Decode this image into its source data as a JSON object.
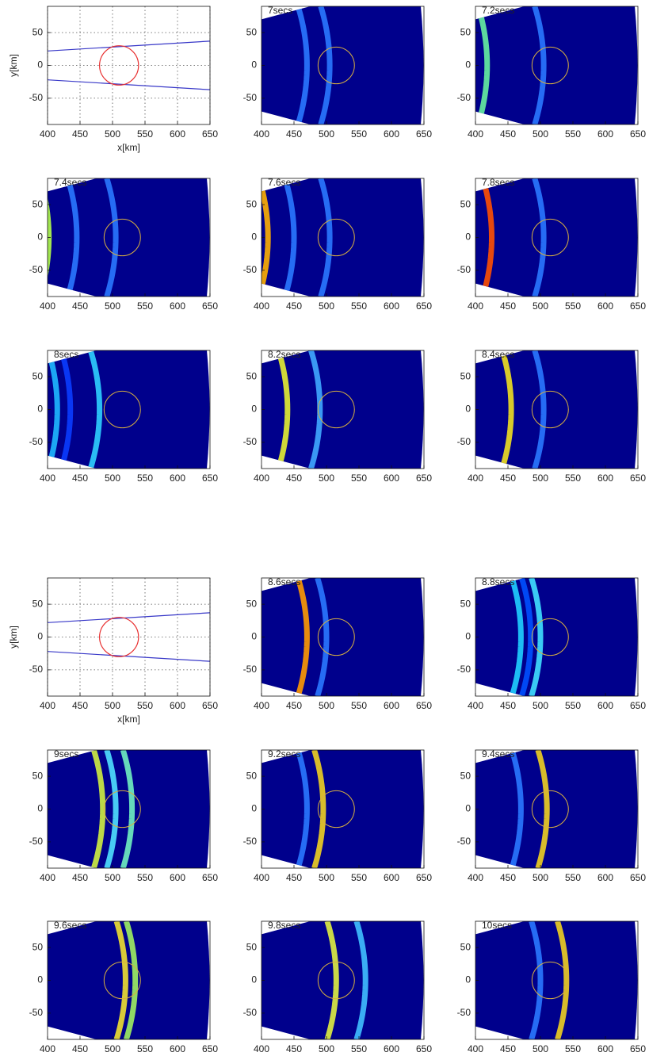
{
  "chart_data": [
    {
      "type": "geometry",
      "xlabel": "x[km]",
      "ylabel": "y[km]",
      "grid": true,
      "xlim": [
        400,
        650
      ],
      "ylim": [
        -90,
        90
      ],
      "xticks": [
        400,
        450,
        500,
        550,
        600,
        650
      ],
      "yticks": [
        -50,
        0,
        50
      ],
      "lines": [
        {
          "color": "#3838c8",
          "x": [
            400,
            650
          ],
          "y": [
            22,
            37
          ]
        },
        {
          "color": "#3838c8",
          "x": [
            400,
            650
          ],
          "y": [
            -22,
            -37
          ]
        }
      ],
      "circle": {
        "x": 510,
        "y": 0,
        "r": 30,
        "color": "#e83030"
      }
    },
    {
      "type": "heatmap",
      "title": "7secs",
      "xlim": [
        400,
        650
      ],
      "ylim": [
        -90,
        90
      ],
      "xticks": [
        400,
        450,
        500,
        550,
        600,
        650
      ],
      "yticks": [
        -50,
        0,
        50
      ],
      "circle": {
        "x": 515,
        "y": 0,
        "r": 28,
        "color": "#d8b040"
      },
      "fronts": {
        "x": [
          470,
          505
        ],
        "colors": [
          "#2a78ff",
          "#2a78ff"
        ]
      }
    },
    {
      "type": "heatmap",
      "title": "7.2secs",
      "xlim": [
        400,
        650
      ],
      "ylim": [
        -90,
        90
      ],
      "xticks": [
        400,
        450,
        500,
        550,
        600,
        650
      ],
      "yticks": [
        -50,
        0,
        50
      ],
      "circle": {
        "x": 515,
        "y": 0,
        "r": 28,
        "color": "#d8b040"
      },
      "fronts": {
        "x": [
          418,
          505
        ],
        "colors": [
          "#66f0a0",
          "#2a78ff"
        ]
      }
    },
    {
      "type": "heatmap",
      "title": "7.4secs",
      "xlim": [
        400,
        650
      ],
      "ylim": [
        -90,
        90
      ],
      "xticks": [
        400,
        450,
        500,
        550,
        600,
        650
      ],
      "yticks": [
        -50,
        0,
        50
      ],
      "circle": {
        "x": 515,
        "y": 0,
        "r": 28,
        "color": "#d8b040"
      },
      "fronts": {
        "x": [
          402,
          445,
          505
        ],
        "colors": [
          "#b4ff4a",
          "#2a78ff",
          "#2a78ff"
        ]
      }
    },
    {
      "type": "heatmap",
      "title": "7.6secs",
      "xlim": [
        400,
        650
      ],
      "ylim": [
        -90,
        90
      ],
      "xticks": [
        400,
        450,
        500,
        550,
        600,
        650
      ],
      "yticks": [
        -50,
        0,
        50
      ],
      "circle": {
        "x": 515,
        "y": 0,
        "r": 28,
        "color": "#d8b040"
      },
      "fronts": {
        "x": [
          410,
          450,
          505
        ],
        "colors": [
          "#ffb000",
          "#2a78ff",
          "#2a78ff"
        ]
      }
    },
    {
      "type": "heatmap",
      "title": "7.8secs",
      "xlim": [
        400,
        650
      ],
      "ylim": [
        -90,
        90
      ],
      "xticks": [
        400,
        450,
        500,
        550,
        600,
        650
      ],
      "yticks": [
        -50,
        0,
        50
      ],
      "circle": {
        "x": 515,
        "y": 0,
        "r": 28,
        "color": "#d8b040"
      },
      "fronts": {
        "x": [
          425,
          505
        ],
        "colors": [
          "#ff5000",
          "#2a78ff"
        ]
      }
    },
    {
      "type": "heatmap",
      "title": "8secs",
      "xlim": [
        400,
        650
      ],
      "ylim": [
        -90,
        90
      ],
      "xticks": [
        400,
        450,
        500,
        550,
        600,
        650
      ],
      "yticks": [
        -50,
        0,
        50
      ],
      "circle": {
        "x": 515,
        "y": 0,
        "r": 28,
        "color": "#d8b040"
      },
      "fronts": {
        "x": [
          415,
          435,
          480
        ],
        "colors": [
          "#1fb8ff",
          "#0a3cff",
          "#2fd0ff"
        ]
      }
    },
    {
      "type": "heatmap",
      "title": "8.2secs",
      "xlim": [
        400,
        650
      ],
      "ylim": [
        -90,
        90
      ],
      "xticks": [
        400,
        450,
        500,
        550,
        600,
        650
      ],
      "yticks": [
        -50,
        0,
        50
      ],
      "circle": {
        "x": 515,
        "y": 0,
        "r": 28,
        "color": "#d8b040"
      },
      "fronts": {
        "x": [
          440,
          490
        ],
        "colors": [
          "#e6f030",
          "#40a8ff"
        ]
      }
    },
    {
      "type": "heatmap",
      "title": "8.4secs",
      "xlim": [
        400,
        650
      ],
      "ylim": [
        -90,
        90
      ],
      "xticks": [
        400,
        450,
        500,
        550,
        600,
        650
      ],
      "yticks": [
        -50,
        0,
        50
      ],
      "circle": {
        "x": 515,
        "y": 0,
        "r": 28,
        "color": "#d8b040"
      },
      "fronts": {
        "x": [
          455,
          505
        ],
        "colors": [
          "#f0e020",
          "#2a78ff"
        ]
      }
    },
    {
      "type": "geometry",
      "xlabel": "x[km]",
      "ylabel": "y[km]",
      "grid": true,
      "xlim": [
        400,
        650
      ],
      "ylim": [
        -90,
        90
      ],
      "xticks": [
        400,
        450,
        500,
        550,
        600,
        650
      ],
      "yticks": [
        -50,
        0,
        50
      ],
      "lines": [
        {
          "color": "#3838c8",
          "x": [
            400,
            650
          ],
          "y": [
            22,
            37
          ]
        },
        {
          "color": "#3838c8",
          "x": [
            400,
            650
          ],
          "y": [
            -22,
            -37
          ]
        }
      ],
      "circle": {
        "x": 510,
        "y": 0,
        "r": 30,
        "color": "#e83030"
      }
    },
    {
      "type": "heatmap",
      "title": "8.6secs",
      "xlim": [
        400,
        650
      ],
      "ylim": [
        -90,
        90
      ],
      "xticks": [
        400,
        450,
        500,
        550,
        600,
        650
      ],
      "yticks": [
        -50,
        0,
        50
      ],
      "circle": {
        "x": 515,
        "y": 0,
        "r": 28,
        "color": "#d8b040"
      },
      "fronts": {
        "x": [
          470,
          500
        ],
        "colors": [
          "#ff9a00",
          "#2a78ff"
        ]
      }
    },
    {
      "type": "heatmap",
      "title": "8.8secs",
      "xlim": [
        400,
        650
      ],
      "ylim": [
        -90,
        90
      ],
      "xticks": [
        400,
        450,
        500,
        550,
        600,
        650
      ],
      "yticks": [
        -50,
        0,
        50
      ],
      "circle": {
        "x": 515,
        "y": 0,
        "r": 28,
        "color": "#d8b040"
      },
      "fronts": {
        "x": [
          470,
          485,
          500
        ],
        "colors": [
          "#20d0ff",
          "#0050ff",
          "#40e0ff"
        ]
      }
    },
    {
      "type": "heatmap",
      "title": "9secs",
      "xlim": [
        400,
        650
      ],
      "ylim": [
        -90,
        90
      ],
      "xticks": [
        400,
        450,
        500,
        550,
        600,
        650
      ],
      "yticks": [
        -50,
        0,
        50
      ],
      "circle": {
        "x": 515,
        "y": 0,
        "r": 28,
        "color": "#d8b040"
      },
      "fronts": {
        "x": [
          485,
          505,
          530
        ],
        "colors": [
          "#d0f040",
          "#50e0ff",
          "#70f0c0"
        ]
      }
    },
    {
      "type": "heatmap",
      "title": "9.2secs",
      "xlim": [
        400,
        650
      ],
      "ylim": [
        -90,
        90
      ],
      "xticks": [
        400,
        450,
        500,
        550,
        600,
        650
      ],
      "yticks": [
        -50,
        0,
        50
      ],
      "circle": {
        "x": 515,
        "y": 0,
        "r": 28,
        "color": "#d8b040"
      },
      "fronts": {
        "x": [
          495,
          470
        ],
        "colors": [
          "#f0d020",
          "#2a78ff"
        ]
      }
    },
    {
      "type": "heatmap",
      "title": "9.4secs",
      "xlim": [
        400,
        650
      ],
      "ylim": [
        -90,
        90
      ],
      "xticks": [
        400,
        450,
        500,
        550,
        600,
        650
      ],
      "yticks": [
        -50,
        0,
        50
      ],
      "circle": {
        "x": 515,
        "y": 0,
        "r": 28,
        "color": "#d8b040"
      },
      "fronts": {
        "x": [
          510,
          470
        ],
        "colors": [
          "#f0d020",
          "#2a78ff"
        ]
      }
    },
    {
      "type": "heatmap",
      "title": "9.6secs",
      "xlim": [
        400,
        650
      ],
      "ylim": [
        -90,
        90
      ],
      "xticks": [
        400,
        450,
        500,
        550,
        600,
        650
      ],
      "yticks": [
        -50,
        0,
        50
      ],
      "circle": {
        "x": 515,
        "y": 0,
        "r": 28,
        "color": "#d8b040"
      },
      "fronts": {
        "x": [
          520,
          535
        ],
        "colors": [
          "#f0e030",
          "#a0f060"
        ]
      }
    },
    {
      "type": "heatmap",
      "title": "9.8secs",
      "xlim": [
        400,
        650
      ],
      "ylim": [
        -90,
        90
      ],
      "xticks": [
        400,
        450,
        500,
        550,
        600,
        650
      ],
      "yticks": [
        -50,
        0,
        50
      ],
      "circle": {
        "x": 515,
        "y": 0,
        "r": 28,
        "color": "#d8b040"
      },
      "fronts": {
        "x": [
          515,
          560
        ],
        "colors": [
          "#e0f040",
          "#40c0ff"
        ]
      }
    },
    {
      "type": "heatmap",
      "title": "10secs",
      "xlim": [
        400,
        650
      ],
      "ylim": [
        -90,
        90
      ],
      "xticks": [
        400,
        450,
        500,
        550,
        600,
        650
      ],
      "yticks": [
        -50,
        0,
        50
      ],
      "circle": {
        "x": 515,
        "y": 0,
        "r": 28,
        "color": "#d8b040"
      },
      "fronts": {
        "x": [
          540,
          500
        ],
        "colors": [
          "#f0d020",
          "#2a78ff"
        ]
      }
    }
  ]
}
